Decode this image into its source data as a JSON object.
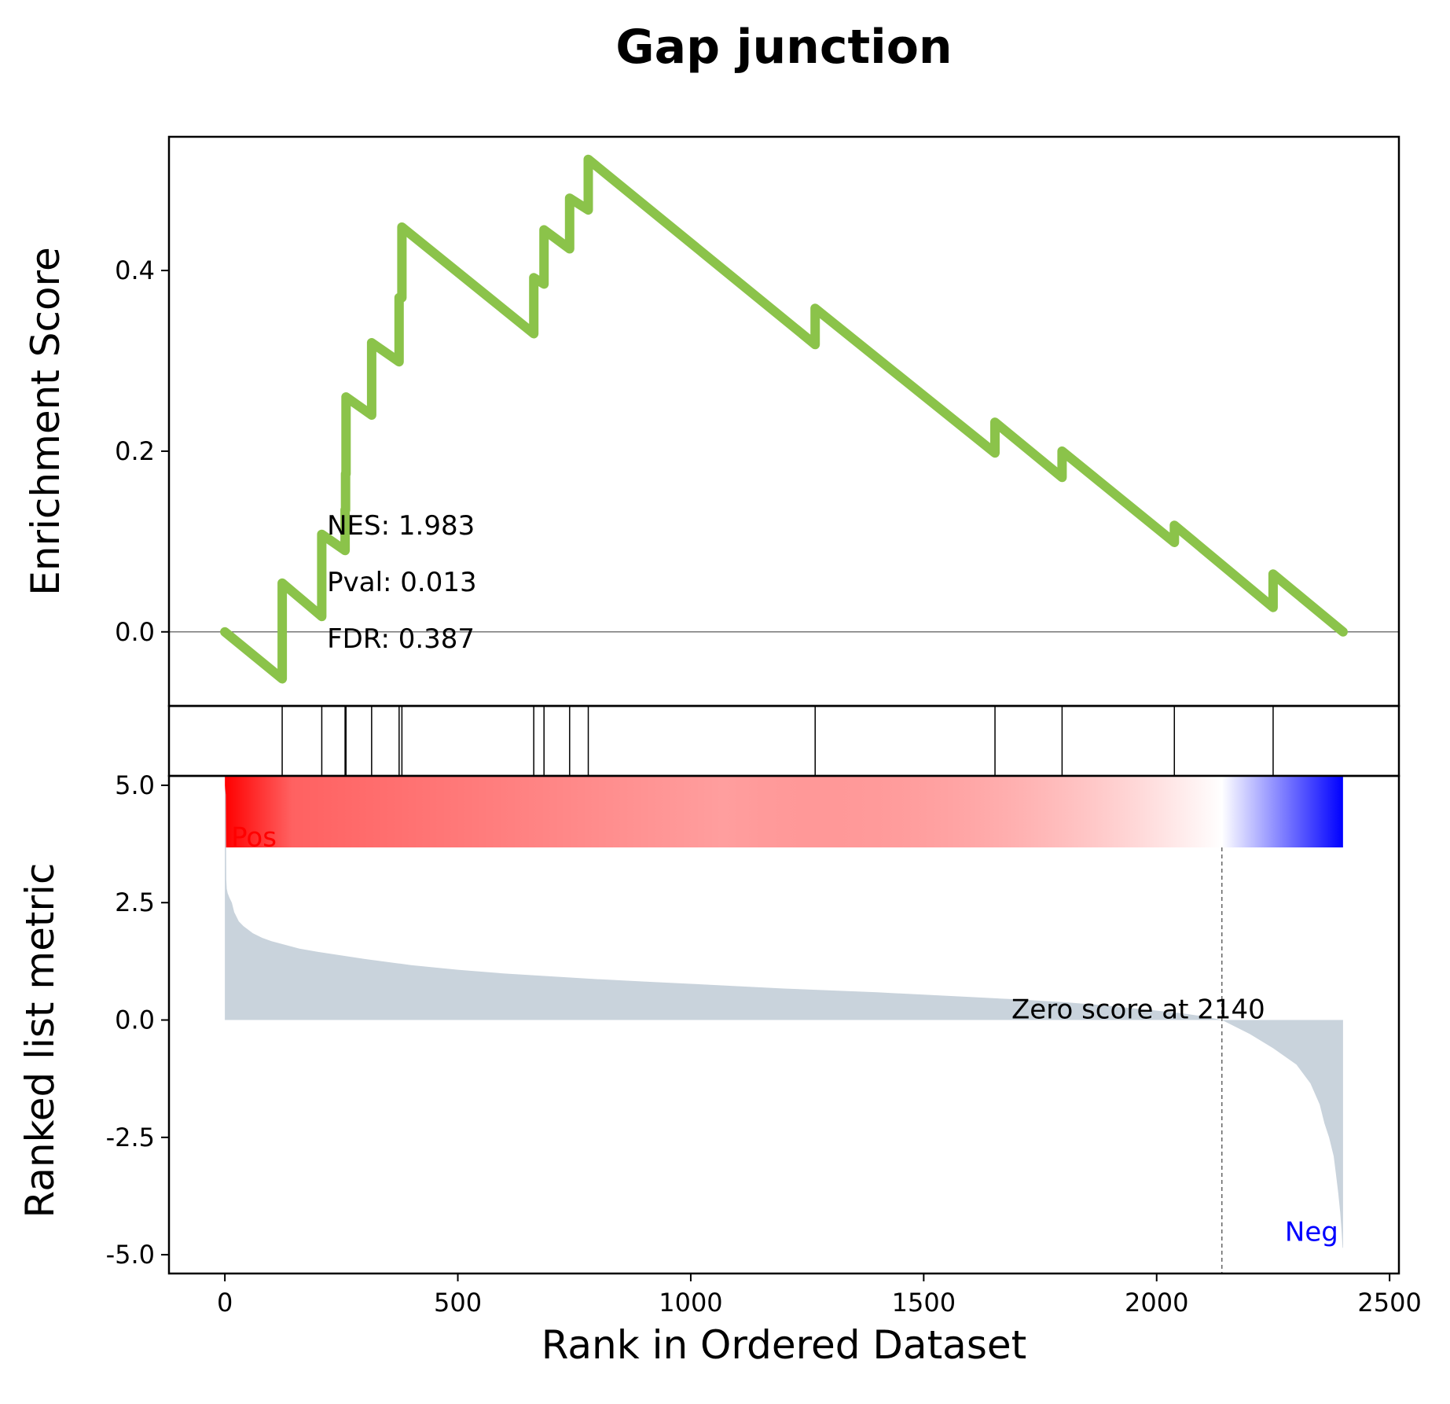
{
  "chart_data": {
    "type": "line",
    "title": "Gap junction",
    "xlabel": "Rank in Ordered Dataset",
    "xlim": [
      -120,
      2520
    ],
    "xticks": [
      0,
      500,
      1000,
      1500,
      2000,
      2500
    ],
    "xtick_labels": [
      "0",
      "500",
      "1000",
      "1500",
      "2000",
      "2500"
    ],
    "es_panel": {
      "ylabel": "Enrichment Score",
      "ylim": [
        -0.082,
        0.548
      ],
      "yticks": [
        0.0,
        0.2,
        0.4
      ],
      "ytick_labels": [
        "0.0",
        "0.2",
        "0.4"
      ],
      "line_color": "#8bc34a",
      "series": [
        {
          "x": [
            0,
            123,
            123,
            208,
            208,
            258,
            258,
            259,
            259,
            260,
            260,
            315,
            315,
            374,
            374,
            380,
            380,
            663,
            663,
            685,
            685,
            740,
            740,
            780,
            780,
            1267,
            1267,
            1653,
            1653,
            1797,
            1797,
            2038,
            2038,
            2250,
            2250,
            2400
          ],
          "y": [
            0.0,
            -0.052,
            0.054,
            0.017,
            0.108,
            0.09,
            0.135,
            0.135,
            0.175,
            0.175,
            0.26,
            0.24,
            0.32,
            0.299,
            0.37,
            0.37,
            0.448,
            0.33,
            0.392,
            0.385,
            0.445,
            0.424,
            0.48,
            0.467,
            0.523,
            0.318,
            0.358,
            0.198,
            0.232,
            0.171,
            0.2,
            0.099,
            0.118,
            0.027,
            0.064,
            0.0
          ]
        }
      ],
      "zero_line": 0.0
    },
    "stats": {
      "nes": "NES: 1.983",
      "pval": "Pval: 0.013",
      "fdr": "FDR: 0.387"
    },
    "hits": [
      123,
      208,
      258,
      260,
      315,
      374,
      380,
      663,
      685,
      740,
      780,
      1267,
      1653,
      1797,
      2038,
      2250
    ],
    "color_bar": {
      "x_range": [
        0,
        2400
      ],
      "positive_color": "#ff0000",
      "mid_color": "#ffffff",
      "negative_color": "#0000ff",
      "zero_at": 2140
    },
    "metric_panel": {
      "ylabel": "Ranked list metric",
      "ylim": [
        -5.4,
        5.2
      ],
      "yticks": [
        5.0,
        2.5,
        0.0,
        -2.5,
        -5.0
      ],
      "ytick_labels": [
        "5.0",
        "2.5",
        "0.0",
        "-2.5",
        "-5.0"
      ],
      "fill_color": "#c9d3dc",
      "series": [
        {
          "x": [
            0,
            2,
            3,
            4,
            6,
            10,
            15,
            20,
            30,
            40,
            60,
            80,
            100,
            130,
            160,
            200,
            300,
            400,
            500,
            600,
            700,
            800,
            900,
            1000,
            1100,
            1200,
            1300,
            1400,
            1500,
            1600,
            1700,
            1800,
            1900,
            2000,
            2050,
            2100,
            2140,
            2150,
            2200,
            2250,
            2300,
            2330,
            2350,
            2360,
            2370,
            2380,
            2385,
            2390,
            2394,
            2397,
            2399,
            2400
          ],
          "y": [
            5.0,
            4.8,
            3.0,
            2.8,
            2.7,
            2.6,
            2.5,
            2.3,
            2.1,
            2.0,
            1.85,
            1.75,
            1.68,
            1.6,
            1.52,
            1.45,
            1.3,
            1.17,
            1.07,
            0.99,
            0.93,
            0.87,
            0.82,
            0.77,
            0.72,
            0.67,
            0.63,
            0.59,
            0.54,
            0.49,
            0.44,
            0.38,
            0.3,
            0.2,
            0.15,
            0.08,
            0.0,
            -0.05,
            -0.3,
            -0.6,
            -0.95,
            -1.35,
            -1.8,
            -2.2,
            -2.5,
            -2.9,
            -3.3,
            -3.7,
            -4.1,
            -4.5,
            -4.85,
            -4.85
          ]
        }
      ],
      "zero_score_label": "Zero score at 2140",
      "zero_score_x": 2140,
      "pos_label": "Pos",
      "neg_label": "Neg"
    }
  }
}
